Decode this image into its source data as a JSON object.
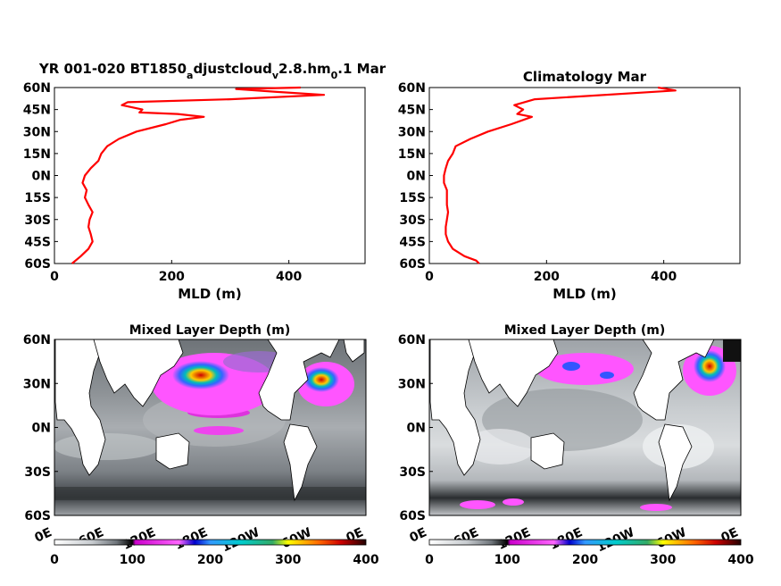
{
  "chart_data": [
    {
      "type": "line",
      "title_main": "YR 001-020 BT1850",
      "title_sub1": "a",
      "title_mid": "djustcloud",
      "title_sub2": "v",
      "title_mid2": "2.8.hm",
      "title_sub3": "0",
      "title_end": ".1 Mar",
      "xlabel": "MLD (m)",
      "xlim": [
        0,
        530
      ],
      "ylim": [
        -60,
        60
      ],
      "xticks": [
        "0",
        "200",
        "400"
      ],
      "yticks": [
        "60N",
        "45N",
        "30N",
        "15N",
        "0N",
        "15S",
        "30S",
        "45S",
        "60S"
      ],
      "color": "#ff0000",
      "series": [
        {
          "x": [
            30,
            45,
            58,
            65,
            62,
            58,
            60,
            65,
            58,
            52,
            55,
            48,
            52,
            62,
            75,
            80,
            90,
            110,
            140,
            190,
            215,
            255,
            210,
            145,
            150,
            115,
            125,
            300,
            460,
            380,
            310,
            420
          ],
          "y": [
            -60,
            -55,
            -50,
            -45,
            -40,
            -35,
            -30,
            -25,
            -20,
            -15,
            -10,
            -5,
            0,
            5,
            10,
            15,
            20,
            25,
            30,
            35,
            38,
            40,
            42,
            43,
            45,
            48,
            50,
            52,
            55,
            57,
            59,
            60
          ]
        }
      ]
    },
    {
      "type": "line",
      "title": "Climatology Mar",
      "xlabel": "MLD (m)",
      "xlim": [
        0,
        530
      ],
      "ylim": [
        -60,
        60
      ],
      "xticks": [
        "0",
        "200",
        "400"
      ],
      "yticks": [
        "60N",
        "45N",
        "30N",
        "15N",
        "0N",
        "15S",
        "30S",
        "45S",
        "60S"
      ],
      "color": "#ff0000",
      "series": [
        {
          "x": [
            85,
            80,
            60,
            40,
            32,
            28,
            28,
            30,
            32,
            30,
            30,
            25,
            25,
            28,
            32,
            40,
            45,
            70,
            100,
            140,
            175,
            150,
            160,
            145,
            180,
            420,
            390
          ],
          "y": [
            -60,
            -58,
            -55,
            -50,
            -45,
            -40,
            -35,
            -30,
            -25,
            -20,
            -10,
            -5,
            0,
            5,
            10,
            15,
            20,
            25,
            30,
            35,
            40,
            42,
            45,
            48,
            52,
            58,
            60
          ]
        }
      ]
    },
    {
      "type": "heatmap",
      "title": "Mixed Layer Depth (m)",
      "yticks": [
        "60N",
        "30N",
        "0N",
        "30S",
        "60S"
      ],
      "xticks": [
        "0E",
        "60E",
        "120E",
        "180E",
        "120W",
        "60W",
        "0E"
      ],
      "colorbar": {
        "ticks": [
          "0",
          "100",
          "200",
          "300",
          "400"
        ],
        "range": [
          0,
          400
        ]
      }
    },
    {
      "type": "heatmap",
      "title": "Mixed Layer Depth (m)",
      "yticks": [
        "60N",
        "30N",
        "0N",
        "30S",
        "60S"
      ],
      "xticks": [
        "0E",
        "60E",
        "120E",
        "180E",
        "120W",
        "60W",
        "0E"
      ],
      "colorbar": {
        "ticks": [
          "0",
          "100",
          "200",
          "300",
          "400"
        ],
        "range": [
          0,
          400
        ]
      }
    }
  ]
}
